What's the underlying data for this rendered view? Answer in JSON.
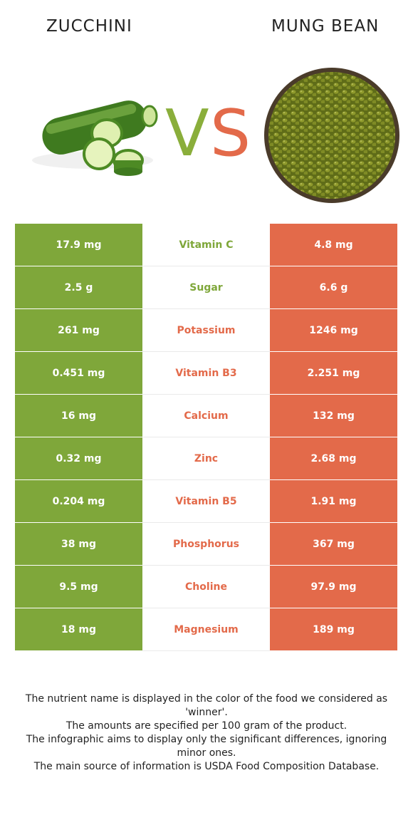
{
  "header": {
    "left_food": "Zucchini",
    "right_food": "Mung bean",
    "vs_label": "VS"
  },
  "colors": {
    "left_accent": "#7fa73a",
    "right_accent": "#e36a4a"
  },
  "rows": [
    {
      "nutrient": "Vitamin C",
      "left": "17.9 mg",
      "right": "4.8 mg",
      "winner": "left"
    },
    {
      "nutrient": "Sugar",
      "left": "2.5 g",
      "right": "6.6 g",
      "winner": "left"
    },
    {
      "nutrient": "Potassium",
      "left": "261 mg",
      "right": "1246 mg",
      "winner": "right"
    },
    {
      "nutrient": "Vitamin B3",
      "left": "0.451 mg",
      "right": "2.251 mg",
      "winner": "right"
    },
    {
      "nutrient": "Calcium",
      "left": "16 mg",
      "right": "132 mg",
      "winner": "right"
    },
    {
      "nutrient": "Zinc",
      "left": "0.32 mg",
      "right": "2.68 mg",
      "winner": "right"
    },
    {
      "nutrient": "Vitamin B5",
      "left": "0.204 mg",
      "right": "1.91 mg",
      "winner": "right"
    },
    {
      "nutrient": "Phosphorus",
      "left": "38 mg",
      "right": "367 mg",
      "winner": "right"
    },
    {
      "nutrient": "Choline",
      "left": "9.5 mg",
      "right": "97.9 mg",
      "winner": "right"
    },
    {
      "nutrient": "Magnesium",
      "left": "18 mg",
      "right": "189 mg",
      "winner": "right"
    }
  ],
  "footnote": [
    "The nutrient name is displayed in the color of the food we considered as 'winner'.",
    "The amounts are specified per 100 gram of the product.",
    "The infographic aims to display only the significant differences, ignoring minor ones.",
    "The main source of information is USDA Food Composition Database."
  ]
}
